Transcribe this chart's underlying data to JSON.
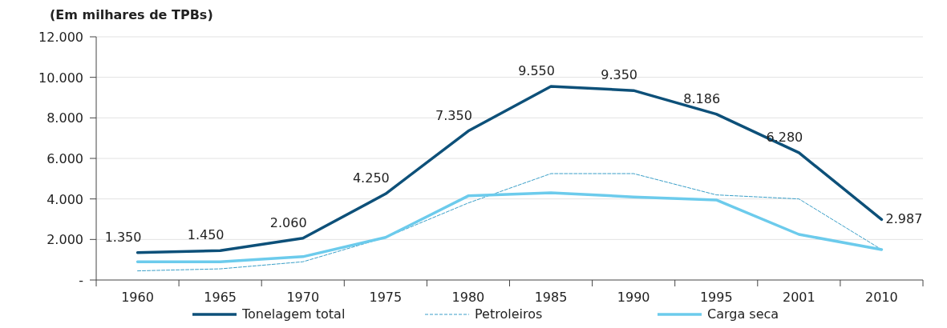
{
  "chart_data": {
    "type": "line",
    "ylabel": "(Em milhares de TPBs)",
    "categories": [
      "1960",
      "1965",
      "1970",
      "1975",
      "1980",
      "1985",
      "1990",
      "1995",
      "2001",
      "2010"
    ],
    "ylim": [
      0,
      12000
    ],
    "yticks": [
      {
        "value": 0,
        "label": "-"
      },
      {
        "value": 2000,
        "label": "2.000"
      },
      {
        "value": 4000,
        "label": "4.000"
      },
      {
        "value": 6000,
        "label": "6.000"
      },
      {
        "value": 8000,
        "label": "8.000"
      },
      {
        "value": 10000,
        "label": "10.000"
      },
      {
        "value": 12000,
        "label": "12.000"
      }
    ],
    "grid": "y",
    "legend": "bottom",
    "marker": "none",
    "series": [
      {
        "name": "Tonelagem total",
        "color": "#0d5079",
        "values": [
          1350,
          1450,
          2060,
          4250,
          7350,
          9550,
          9350,
          8186,
          6280,
          2987
        ],
        "value_labels": [
          "1.350",
          "1.450",
          "2.060",
          "4.250",
          "7.350",
          "9.550",
          "9.350",
          "8.186",
          "6.280",
          "2.987"
        ]
      },
      {
        "name": "Petroleiros",
        "color": "#3a9fc8",
        "line_style": "dashed",
        "values": [
          450,
          550,
          900,
          2100,
          3800,
          5250,
          5250,
          4200,
          4000,
          1500
        ]
      },
      {
        "name": "Carga seca",
        "color": "#6ccbec",
        "values": [
          900,
          900,
          1150,
          2100,
          4150,
          4300,
          4100,
          3950,
          2250,
          1500
        ]
      }
    ]
  }
}
